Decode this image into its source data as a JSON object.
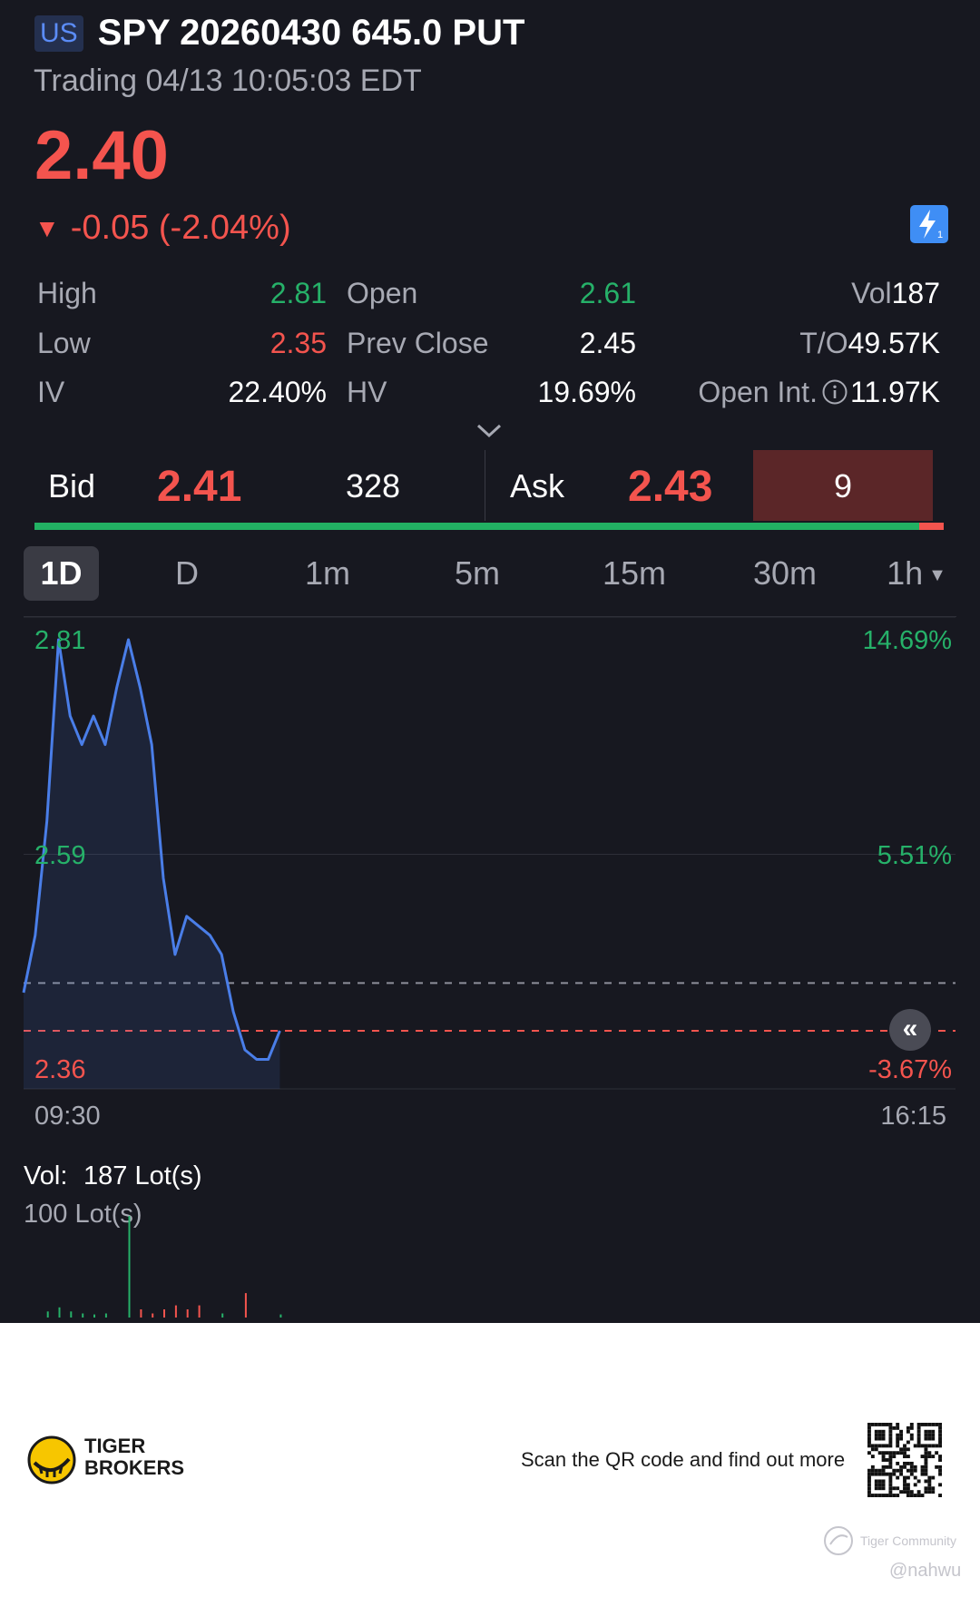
{
  "header": {
    "market_badge": "US",
    "title": "SPY 20260430 645.0 PUT",
    "status": "Trading 04/13 10:05:03 EDT"
  },
  "quote": {
    "price": "2.40",
    "change_arrow": "▼",
    "change": "-0.05 (-2.04%)",
    "flash_icon": "lightning-icon"
  },
  "stats": {
    "high": {
      "label": "High",
      "value": "2.81"
    },
    "low": {
      "label": "Low",
      "value": "2.35"
    },
    "iv": {
      "label": "IV",
      "value": "22.40%"
    },
    "open": {
      "label": "Open",
      "value": "2.61"
    },
    "prev_close": {
      "label": "Prev Close",
      "value": "2.45"
    },
    "hv": {
      "label": "HV",
      "value": "19.69%"
    },
    "vol": {
      "label": "Vol",
      "value": "187"
    },
    "turnover": {
      "label": "T/O",
      "value": "49.57K"
    },
    "open_int": {
      "label": "Open Int.",
      "value": "11.97K"
    }
  },
  "bid_ask": {
    "bid_label": "Bid",
    "bid_price": "2.41",
    "bid_size": "328",
    "ask_label": "Ask",
    "ask_price": "2.43",
    "ask_size": "9",
    "bid_ratio": 0.973
  },
  "tabs": [
    {
      "label": "1D",
      "active": true
    },
    {
      "label": "D"
    },
    {
      "label": "1m"
    },
    {
      "label": "5m"
    },
    {
      "label": "15m"
    },
    {
      "label": "30m"
    },
    {
      "label": "1h",
      "dropdown": true
    }
  ],
  "chart_data": {
    "type": "line",
    "x_start": "09:30",
    "x_end": "16:15",
    "y_left_ticks": [
      "2.81",
      "2.59",
      "2.36"
    ],
    "y_right_ticks": [
      "14.69%",
      "5.51%",
      "-3.67%"
    ],
    "ylim": [
      2.36,
      2.81
    ],
    "prev_close": 2.45,
    "last_price": 2.4,
    "series": [
      {
        "values": [
          [
            0,
            2.44
          ],
          [
            1,
            2.5
          ],
          [
            2,
            2.62
          ],
          [
            3,
            2.81
          ],
          [
            4,
            2.73
          ],
          [
            5,
            2.7
          ],
          [
            6,
            2.73
          ],
          [
            7,
            2.7
          ],
          [
            8,
            2.76
          ],
          [
            9,
            2.81
          ],
          [
            10,
            2.76
          ],
          [
            11,
            2.7
          ],
          [
            12,
            2.56
          ],
          [
            13,
            2.48
          ],
          [
            14,
            2.52
          ],
          [
            15,
            2.51
          ],
          [
            16,
            2.5
          ],
          [
            17,
            2.48
          ],
          [
            18,
            2.42
          ],
          [
            19,
            2.38
          ],
          [
            20,
            2.37
          ],
          [
            21,
            2.37
          ],
          [
            22,
            2.4
          ]
        ]
      }
    ],
    "colors": {
      "line": "#4a7ee8",
      "up": "#26b169",
      "down": "#f4544e"
    }
  },
  "volume": {
    "label": "Vol:",
    "value": "187 Lot(s)",
    "scale_label": "100 Lot(s)",
    "bars": [
      {
        "x": 2,
        "v": 6,
        "c": "g"
      },
      {
        "x": 3,
        "v": 10,
        "c": "g"
      },
      {
        "x": 4,
        "v": 6,
        "c": "g"
      },
      {
        "x": 5,
        "v": 4,
        "c": "g"
      },
      {
        "x": 6,
        "v": 3,
        "c": "g"
      },
      {
        "x": 7,
        "v": 4,
        "c": "g"
      },
      {
        "x": 9,
        "v": 100,
        "c": "g"
      },
      {
        "x": 10,
        "v": 8,
        "c": "r"
      },
      {
        "x": 11,
        "v": 4,
        "c": "r"
      },
      {
        "x": 12,
        "v": 8,
        "c": "r"
      },
      {
        "x": 13,
        "v": 12,
        "c": "r"
      },
      {
        "x": 14,
        "v": 8,
        "c": "r"
      },
      {
        "x": 15,
        "v": 12,
        "c": "r"
      },
      {
        "x": 17,
        "v": 4,
        "c": "g"
      },
      {
        "x": 19,
        "v": 24,
        "c": "r"
      },
      {
        "x": 22,
        "v": 3,
        "c": "g"
      }
    ]
  },
  "footer": {
    "brand_line1": "TIGER",
    "brand_line2": "BROKERS",
    "scan_text": "Scan the QR code and find out more",
    "community": "Tiger Community",
    "handle": "@nahwu"
  }
}
